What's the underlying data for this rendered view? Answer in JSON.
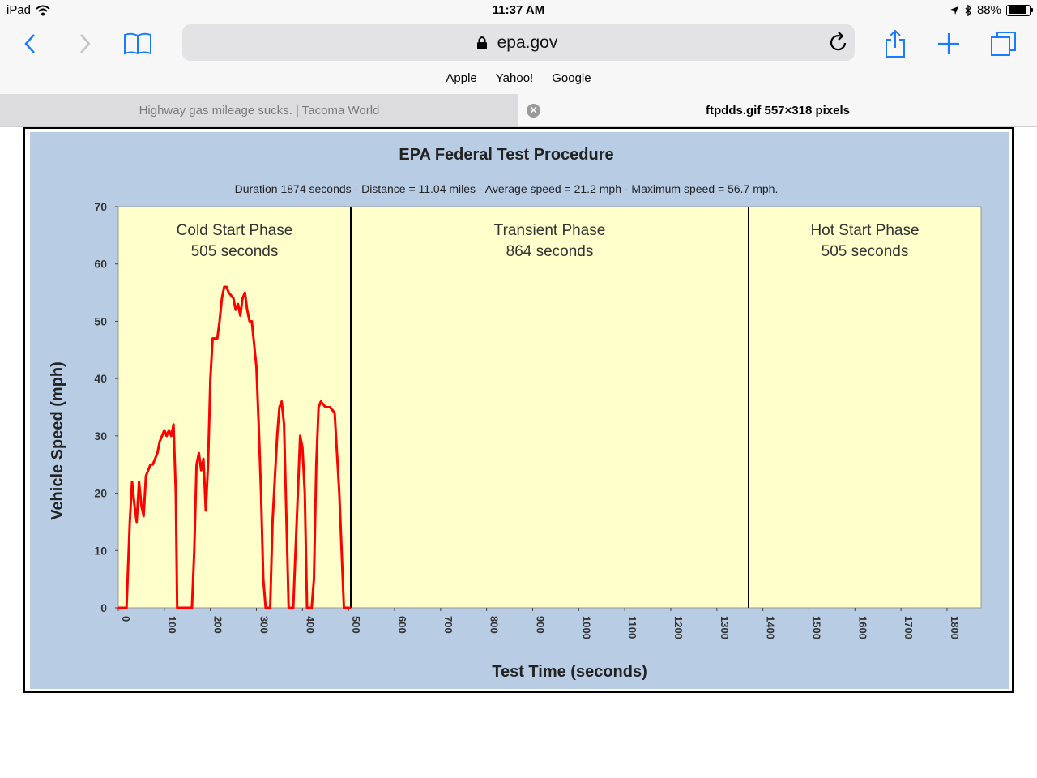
{
  "status_bar": {
    "device": "iPad",
    "time": "11:37 AM",
    "battery": "88%",
    "battery_level": 0.88
  },
  "toolbar": {
    "address": "epa.gov",
    "icons": [
      "back-icon",
      "forward-icon",
      "bookmarks-icon",
      "lock-icon",
      "reload-icon",
      "share-icon",
      "new-tab-icon",
      "tabs-icon"
    ]
  },
  "favorites": [
    "Apple",
    "Yahoo!",
    "Google"
  ],
  "tabs": [
    {
      "title": "Highway gas mileage sucks. | Tacoma World",
      "active": false
    },
    {
      "title": "ftpdds.gif 557×318 pixels",
      "active": true
    }
  ],
  "colors": {
    "figure_bg": "#b8cce4",
    "plot_bg": "#ffffcc",
    "line": "#ff0000",
    "accent": "#1a7bff"
  },
  "chart_data": {
    "type": "line",
    "title": "EPA Federal Test Procedure",
    "subtitle": "Duration 1874 seconds - Distance = 11.04 miles - Average speed = 21.2 mph - Maximum speed = 56.7 mph.",
    "xlabel": "Test Time (seconds)",
    "ylabel": "Vehicle Speed (mph)",
    "xlim": [
      0,
      1874
    ],
    "ylim": [
      0,
      70
    ],
    "xticks": [
      0,
      100,
      200,
      300,
      400,
      500,
      600,
      700,
      800,
      900,
      1000,
      1100,
      1200,
      1300,
      1400,
      1500,
      1600,
      1700,
      1800
    ],
    "yticks": [
      0,
      10,
      20,
      30,
      40,
      50,
      60,
      70
    ],
    "grid": false,
    "phase_boundaries": [
      505,
      1369
    ],
    "phases": [
      {
        "name": "Cold Start Phase",
        "duration": "505 seconds"
      },
      {
        "name": "Transient Phase",
        "duration": "864 seconds"
      },
      {
        "name": "Hot Start Phase",
        "duration": "505 seconds"
      }
    ],
    "series": [
      {
        "x": [
          0,
          18,
          25,
          30,
          35,
          40,
          45,
          50,
          55,
          60,
          65,
          70,
          75,
          85,
          90,
          95,
          100,
          105,
          110,
          115,
          120,
          125,
          128,
          132,
          160,
          165,
          170,
          175,
          180,
          185,
          190,
          195,
          200,
          205,
          215,
          220,
          225,
          230,
          235,
          240,
          250,
          255,
          260,
          265,
          270,
          275,
          280,
          285,
          290,
          300,
          305,
          310,
          315,
          320,
          330,
          335,
          345,
          350,
          355,
          360,
          370,
          375,
          380,
          385,
          395,
          400,
          405,
          410,
          420,
          425,
          430,
          435,
          440,
          450,
          460,
          470,
          480,
          490,
          495,
          505
        ],
        "y": [
          0,
          0,
          15,
          22,
          18,
          15,
          22,
          18,
          16,
          23,
          24,
          25,
          25,
          27,
          29,
          30,
          31,
          30,
          31,
          30,
          32,
          20,
          0,
          0,
          0,
          10,
          25,
          27,
          24,
          26,
          17,
          25,
          40,
          47,
          47,
          50,
          54,
          56,
          56,
          55,
          54,
          52,
          53,
          51,
          54,
          55,
          52,
          50,
          50,
          42,
          32,
          20,
          5,
          0,
          0,
          15,
          30,
          35,
          36,
          32,
          0,
          0,
          0,
          10,
          30,
          28,
          20,
          0,
          0,
          5,
          25,
          35,
          36,
          35,
          35,
          34,
          20,
          0,
          0,
          0
        ],
        "y_note": "traced"
      }
    ]
  }
}
